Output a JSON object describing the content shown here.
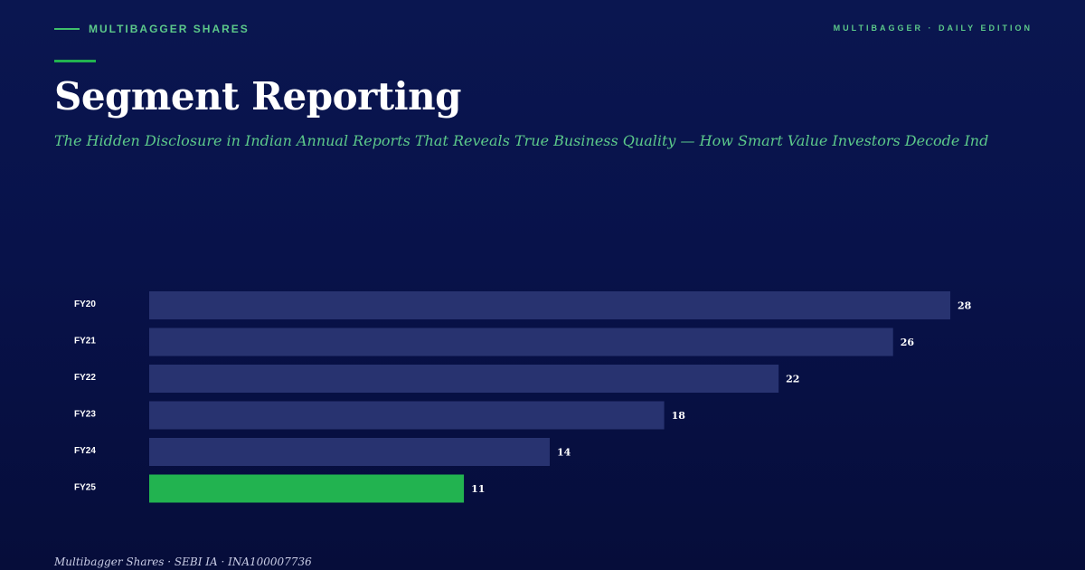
{
  "brand": {
    "name": "MULTIBAGGER SHARES",
    "edition": "MULTIBAGGER · DAILY EDITION"
  },
  "header": {
    "title": "Segment Reporting",
    "subtitle": "The Hidden Disclosure in Indian Annual Reports That Reveals True Business Quality — How Smart Value Investors Decode Ind"
  },
  "colors": {
    "bar_default": "#283370",
    "bar_highlight": "#22b350",
    "accent": "#5cc98a"
  },
  "chart_data": {
    "type": "bar",
    "orientation": "horizontal",
    "categories": [
      "FY20",
      "FY21",
      "FY22",
      "FY23",
      "FY24",
      "FY25"
    ],
    "values": [
      28,
      26,
      22,
      18,
      14,
      11
    ],
    "highlight_index": 5,
    "title": "",
    "xlabel": "",
    "ylabel": "",
    "xlim": [
      0,
      28
    ],
    "grid": false,
    "legend": "none"
  },
  "footer": {
    "text": "Multibagger Shares · SEBI IA · INA100007736"
  }
}
